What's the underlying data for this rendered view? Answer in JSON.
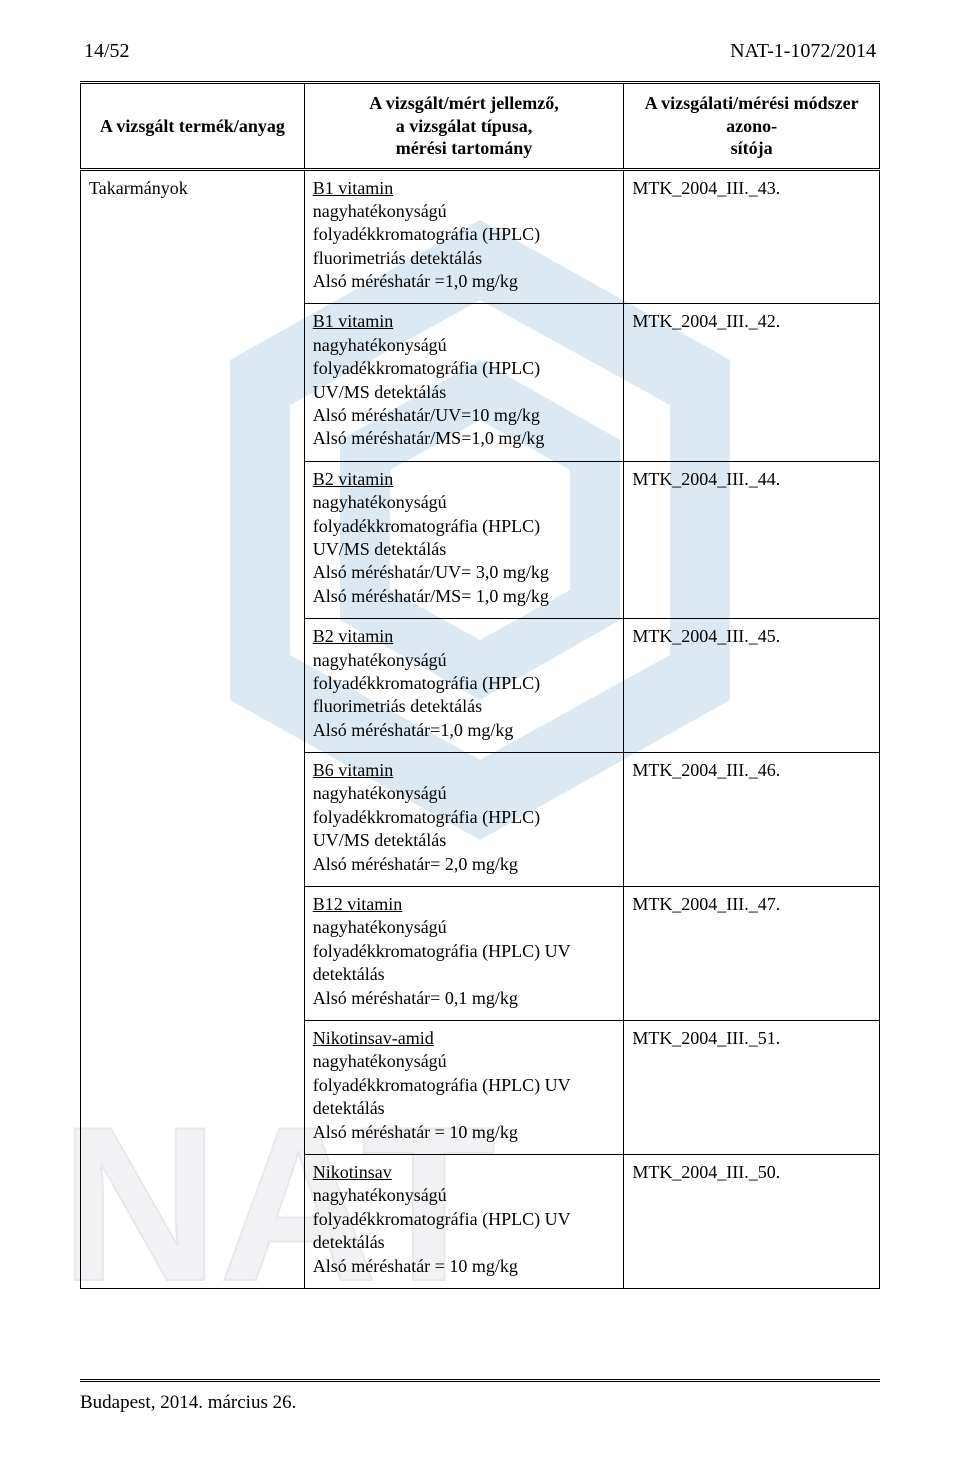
{
  "header": {
    "page_num": "14/52",
    "ref": "NAT-1-1072/2014"
  },
  "table": {
    "columns": {
      "c1": "A vizsgált termék/anyag",
      "c2_l1": "A vizsgált/mért jellemző,",
      "c2_l2": "a vizsgálat típusa,",
      "c2_l3": "mérési tartomány",
      "c3_l1": "A vizsgálati/mérési módszer azono-",
      "c3_l2": "sítója"
    },
    "product": "Takarmányok",
    "rows": [
      {
        "lead": "B1 vitamin",
        "lines": [
          "nagyhatékonyságú",
          "folyadékkromatográfia (HPLC)",
          "fluorimetriás detektálás",
          "Alsó méréshatár =1,0 mg/kg"
        ],
        "method": "MTK_2004_III._43."
      },
      {
        "lead": "B1 vitamin",
        "lines": [
          "nagyhatékonyságú",
          "folyadékkromatográfia (HPLC)",
          "UV/MS detektálás",
          "Alsó méréshatár/UV=10 mg/kg",
          "Alsó méréshatár/MS=1,0 mg/kg"
        ],
        "method": "MTK_2004_III._42."
      },
      {
        "lead": "B2 vitamin",
        "lines": [
          "nagyhatékonyságú",
          "folyadékkromatográfia (HPLC)",
          "UV/MS detektálás",
          "Alsó méréshatár/UV= 3,0 mg/kg",
          "Alsó méréshatár/MS= 1,0 mg/kg"
        ],
        "method": "MTK_2004_III._44."
      },
      {
        "lead": "B2 vitamin",
        "lines": [
          "nagyhatékonyságú",
          "folyadékkromatográfia (HPLC)",
          "fluorimetriás detektálás",
          "Alsó méréshatár=1,0 mg/kg"
        ],
        "method": "MTK_2004_III._45."
      },
      {
        "lead": "B6 vitamin",
        "lines": [
          "nagyhatékonyságú",
          "folyadékkromatográfia (HPLC)",
          "UV/MS detektálás",
          "Alsó méréshatár= 2,0 mg/kg"
        ],
        "method": "MTK_2004_III._46."
      },
      {
        "lead": "B12 vitamin",
        "lines": [
          "nagyhatékonyságú",
          "folyadékkromatográfia (HPLC) UV",
          "detektálás",
          "Alsó méréshatár= 0,1 mg/kg"
        ],
        "method": "MTK_2004_III._47."
      },
      {
        "lead": "Nikotinsav-amid",
        "lines": [
          "nagyhatékonyságú",
          "folyadékkromatográfia (HPLC) UV",
          "detektálás",
          "Alsó méréshatár = 10 mg/kg"
        ],
        "method": "MTK_2004_III._51."
      },
      {
        "lead": "Nikotinsav",
        "lines": [
          "nagyhatékonyságú",
          "folyadékkromatográfia (HPLC) UV",
          "detektálás",
          "Alsó méréshatár = 10 mg/kg"
        ],
        "method": "MTK_2004_III._50."
      }
    ]
  },
  "footer": "Budapest, 2014. március 26.",
  "watermark": {
    "hex_fill": "#dce8f2",
    "nat_fill": "#f2f2f4"
  }
}
